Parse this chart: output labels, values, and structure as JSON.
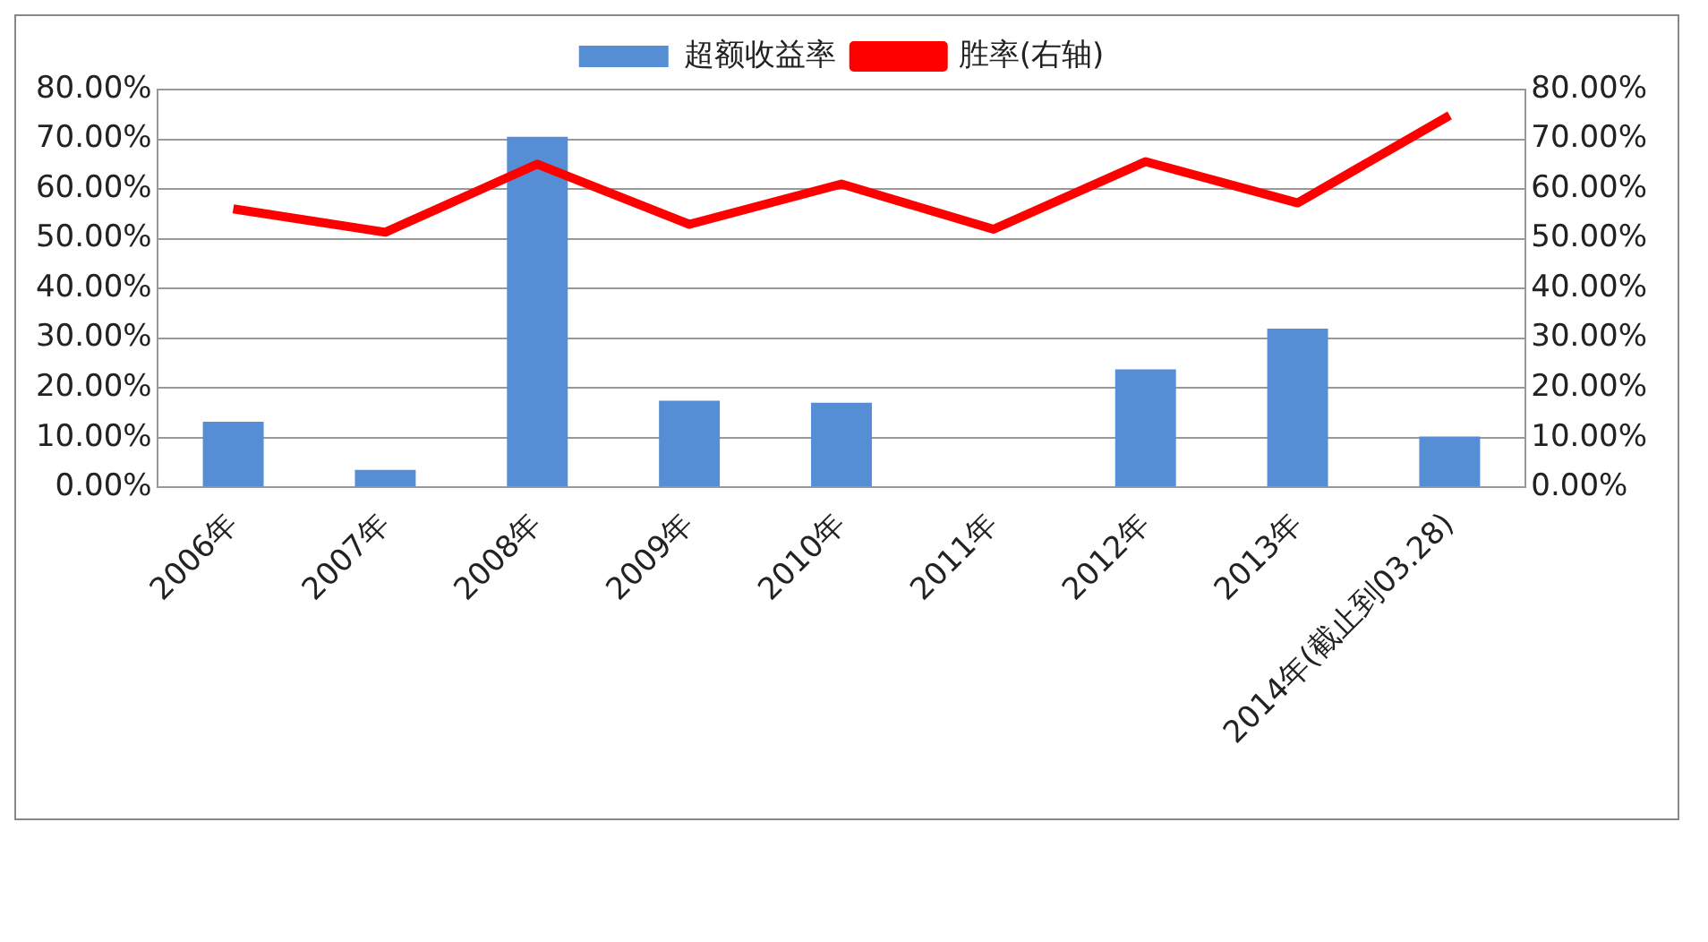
{
  "chart_data": {
    "type": "bar",
    "categories": [
      "2006年",
      "2007年",
      "2008年",
      "2009年",
      "2010年",
      "2011年",
      "2012年",
      "2013年",
      "2014年(截止到03.28)"
    ],
    "series": [
      {
        "name": "超额收益率",
        "color": "#558ed5",
        "values": [
          13.2,
          3.5,
          70.5,
          17.4,
          17.0,
          null,
          23.7,
          31.9,
          10.2
        ]
      },
      {
        "name": "胜率(右轴)",
        "type": "line",
        "axis": "y2",
        "color": "#ff0000",
        "marker": "none",
        "values": [
          56.0,
          51.3,
          65.0,
          52.9,
          61.0,
          51.9,
          65.5,
          57.2,
          74.8
        ]
      }
    ],
    "ylim": [
      0,
      80
    ],
    "yticks": [
      {
        "value": 0,
        "label": "0.00%"
      },
      {
        "value": 10,
        "label": "10.00%"
      },
      {
        "value": 20,
        "label": "20.00%"
      },
      {
        "value": 30,
        "label": "30.00%"
      },
      {
        "value": 40,
        "label": "40.00%"
      },
      {
        "value": 50,
        "label": "50.00%"
      },
      {
        "value": 60,
        "label": "60.00%"
      },
      {
        "value": 70,
        "label": "70.00%"
      },
      {
        "value": 80,
        "label": "80.00%"
      }
    ],
    "y2lim": [
      0,
      80
    ],
    "y2ticks": [
      {
        "value": 0,
        "label": "0.00%"
      },
      {
        "value": 10,
        "label": "10.00%"
      },
      {
        "value": 20,
        "label": "20.00%"
      },
      {
        "value": 30,
        "label": "30.00%"
      },
      {
        "value": 40,
        "label": "40.00%"
      },
      {
        "value": 50,
        "label": "50.00%"
      },
      {
        "value": 60,
        "label": "60.00%"
      },
      {
        "value": 70,
        "label": "70.00%"
      },
      {
        "value": 80,
        "label": "80.00%"
      }
    ],
    "grid": "y",
    "legend": "top"
  }
}
